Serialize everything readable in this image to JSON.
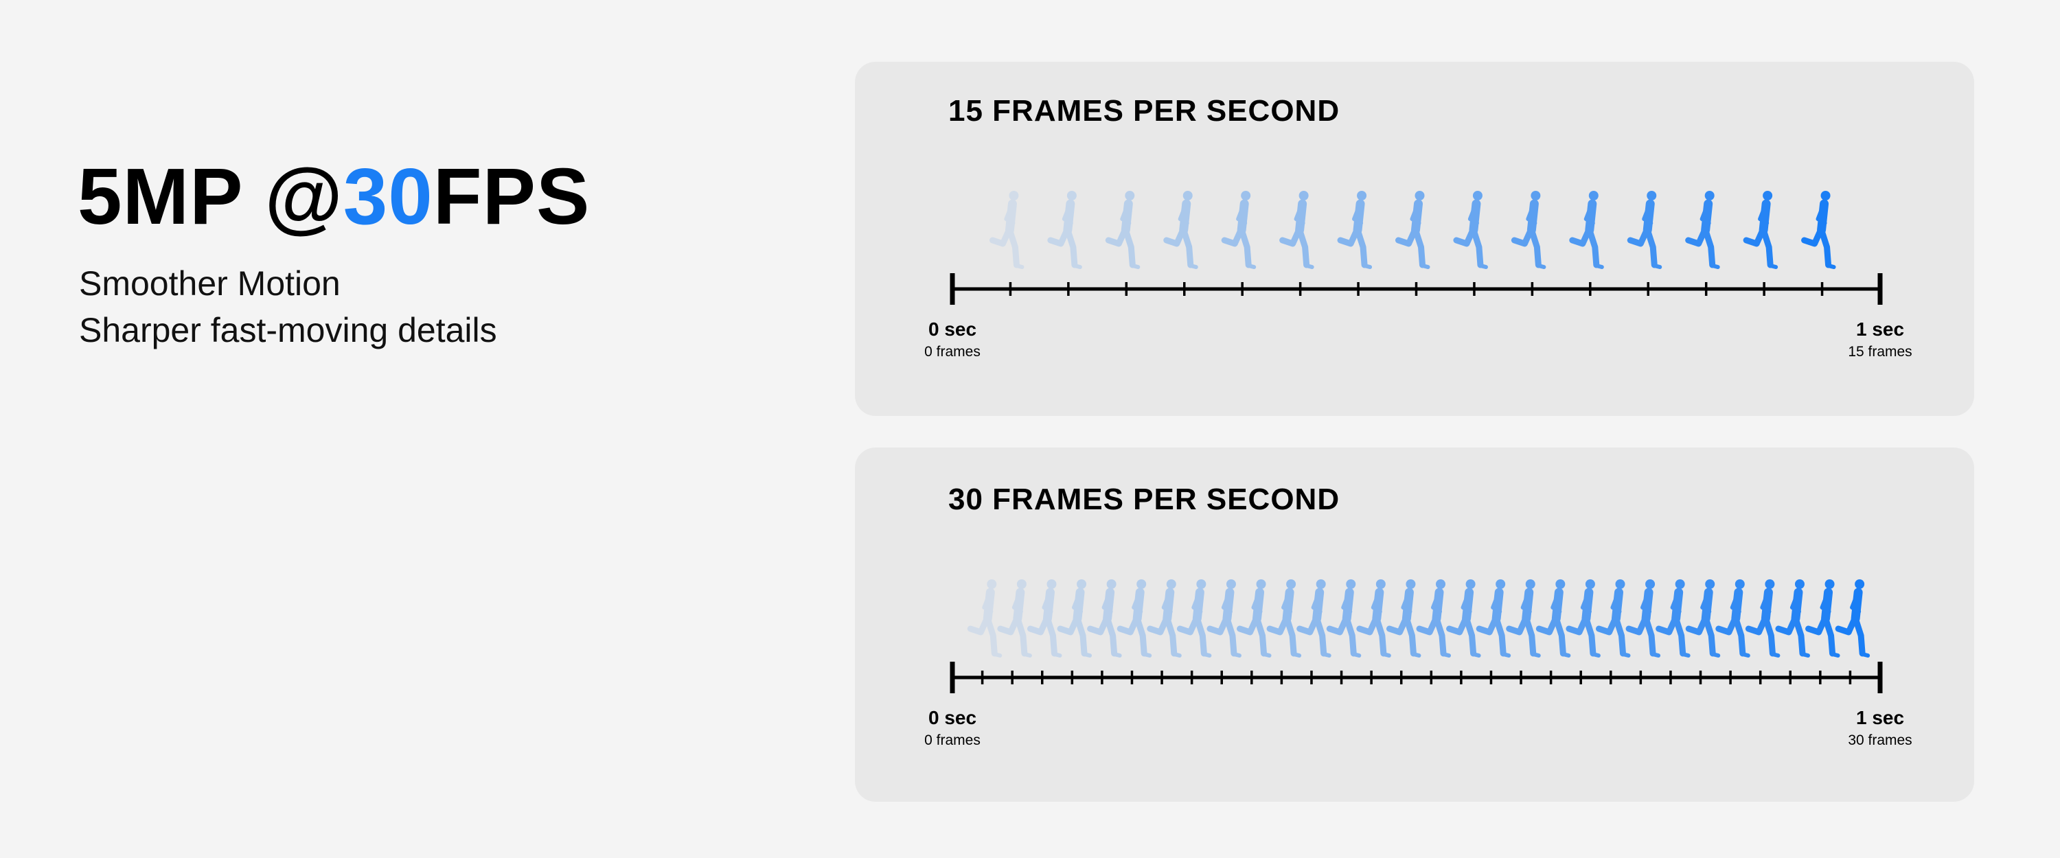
{
  "headline": {
    "prefix": "5MP @",
    "accent": "30",
    "suffix": "FPS",
    "accent_color": "#1a7ef5"
  },
  "subtitle": [
    "Smoother Motion",
    "Sharper fast-moving details"
  ],
  "runner_icon": "running-person-silhouette",
  "panels": [
    {
      "title": "15 FRAMES PER SECOND",
      "fps": 15,
      "start_sec": "0 sec",
      "start_frames": "0 frames",
      "end_sec": "1 sec",
      "end_frames": "15 frames"
    },
    {
      "title": "30 FRAMES PER SECOND",
      "fps": 30,
      "start_sec": "0 sec",
      "start_frames": "0 frames",
      "end_sec": "1 sec",
      "end_frames": "30 frames"
    }
  ]
}
